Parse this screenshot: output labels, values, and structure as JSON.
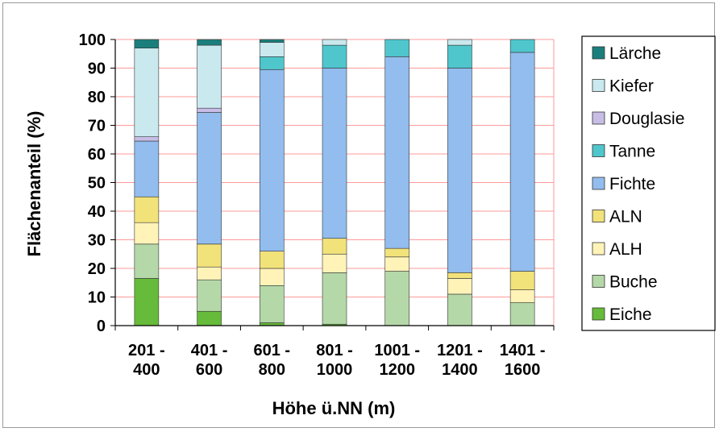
{
  "chart_data": {
    "type": "bar",
    "stacked": true,
    "xlabel": "Höhe ü.NN (m)",
    "ylabel": "Flächenanteil (%)",
    "ylim": [
      0,
      100
    ],
    "yticks": [
      0,
      10,
      20,
      30,
      40,
      50,
      60,
      70,
      80,
      90,
      100
    ],
    "grid": true,
    "legend_position": "right",
    "categories": [
      [
        "201 -",
        "400"
      ],
      [
        "401 -",
        "600"
      ],
      [
        "601 -",
        "800"
      ],
      [
        "801 -",
        "1000"
      ],
      [
        "1001 -",
        "1200"
      ],
      [
        "1201 -",
        "1400"
      ],
      [
        "1401 -",
        "1600"
      ]
    ],
    "series": [
      {
        "name": "Eiche",
        "color": "#66bb3a",
        "values": [
          16.5,
          5,
          1,
          0.5,
          0,
          0,
          0
        ]
      },
      {
        "name": "Buche",
        "color": "#b5d8a8",
        "values": [
          12,
          11,
          13,
          18,
          19,
          11,
          8
        ]
      },
      {
        "name": "ALH",
        "color": "#fff3b8",
        "values": [
          7.5,
          4.5,
          6,
          6.5,
          5,
          5.5,
          4.5
        ]
      },
      {
        "name": "ALN",
        "color": "#f2e27a",
        "values": [
          9,
          8,
          6,
          5.5,
          3,
          2,
          6.5
        ]
      },
      {
        "name": "Fichte",
        "color": "#92bdee",
        "values": [
          19.5,
          46,
          63.5,
          59.5,
          67,
          71.5,
          76.5
        ]
      },
      {
        "name": "Tanne",
        "color": "#4fc6cc",
        "values": [
          0,
          0,
          4.5,
          8,
          6,
          8,
          4.5
        ]
      },
      {
        "name": "Douglasie",
        "color": "#c8bde6",
        "values": [
          1.5,
          1.5,
          0,
          0,
          0,
          0,
          0
        ]
      },
      {
        "name": "Kiefer",
        "color": "#c9e9ef",
        "values": [
          31,
          22,
          5,
          2,
          0,
          2,
          0
        ]
      },
      {
        "name": "Lärche",
        "color": "#1a7f7c",
        "values": [
          3,
          2,
          1,
          0,
          0,
          0,
          0
        ]
      }
    ]
  }
}
